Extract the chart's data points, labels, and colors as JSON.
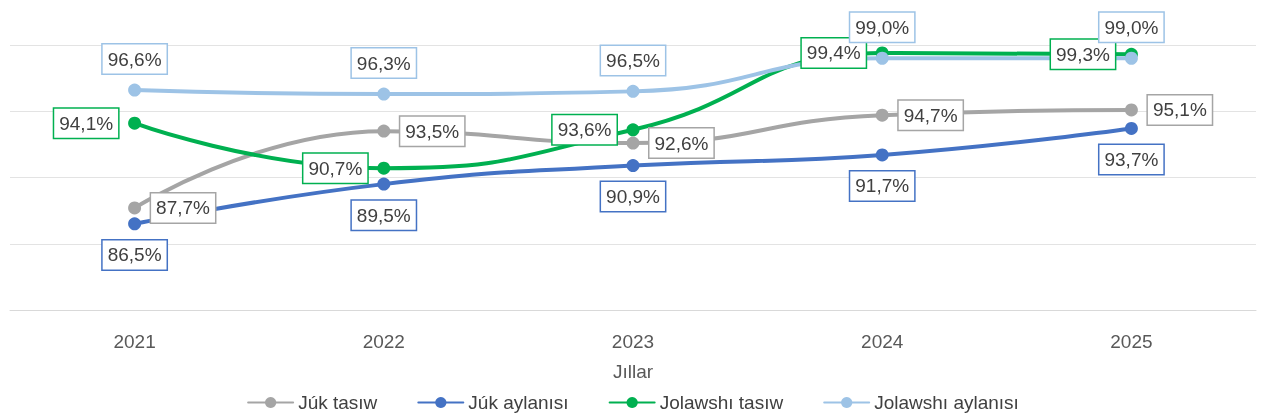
{
  "chart_data": {
    "type": "line",
    "xlabel": "Jıllar",
    "categories": [
      "2021",
      "2022",
      "2023",
      "2024",
      "2025"
    ],
    "series": [
      {
        "name": "Júk tasıw",
        "color": "#a5a5a5",
        "values": [
          87.7,
          93.5,
          92.6,
          94.7,
          95.1
        ],
        "value_labels": [
          "87,7%",
          "93,5%",
          "92,6%",
          "94,7%",
          "95,1%"
        ]
      },
      {
        "name": "Júk aylanısı",
        "color": "#4472c4",
        "values": [
          86.5,
          89.5,
          90.9,
          91.7,
          93.7
        ],
        "value_labels": [
          "86,5%",
          "89,5%",
          "90,9%",
          "91,7%",
          "93,7%"
        ]
      },
      {
        "name": "Jolawshı tasıw",
        "color": "#00b050",
        "values": [
          94.1,
          90.7,
          93.6,
          99.4,
          99.3
        ],
        "value_labels": [
          "94,1%",
          "90,7%",
          "93,6%",
          "99,4%",
          "99,3%"
        ]
      },
      {
        "name": "Jolawshı aylanısı",
        "color": "#9dc3e6",
        "values": [
          96.6,
          96.3,
          96.5,
          99.0,
          99.0
        ],
        "value_labels": [
          "96,6%",
          "96,3%",
          "96,5%",
          "99,0%",
          "99,0%"
        ]
      }
    ],
    "ylim": [
      80,
      100
    ],
    "yticks": [
      {
        "value": 80,
        "label": null
      },
      {
        "value": 85,
        "label": null
      },
      {
        "value": 90,
        "label": null
      },
      {
        "value": 95,
        "label": null
      },
      {
        "value": 100,
        "label": null
      }
    ],
    "tick_labels": "x",
    "grid": "y",
    "legend": "bottom",
    "marker": "circle",
    "line_style": "solid"
  }
}
